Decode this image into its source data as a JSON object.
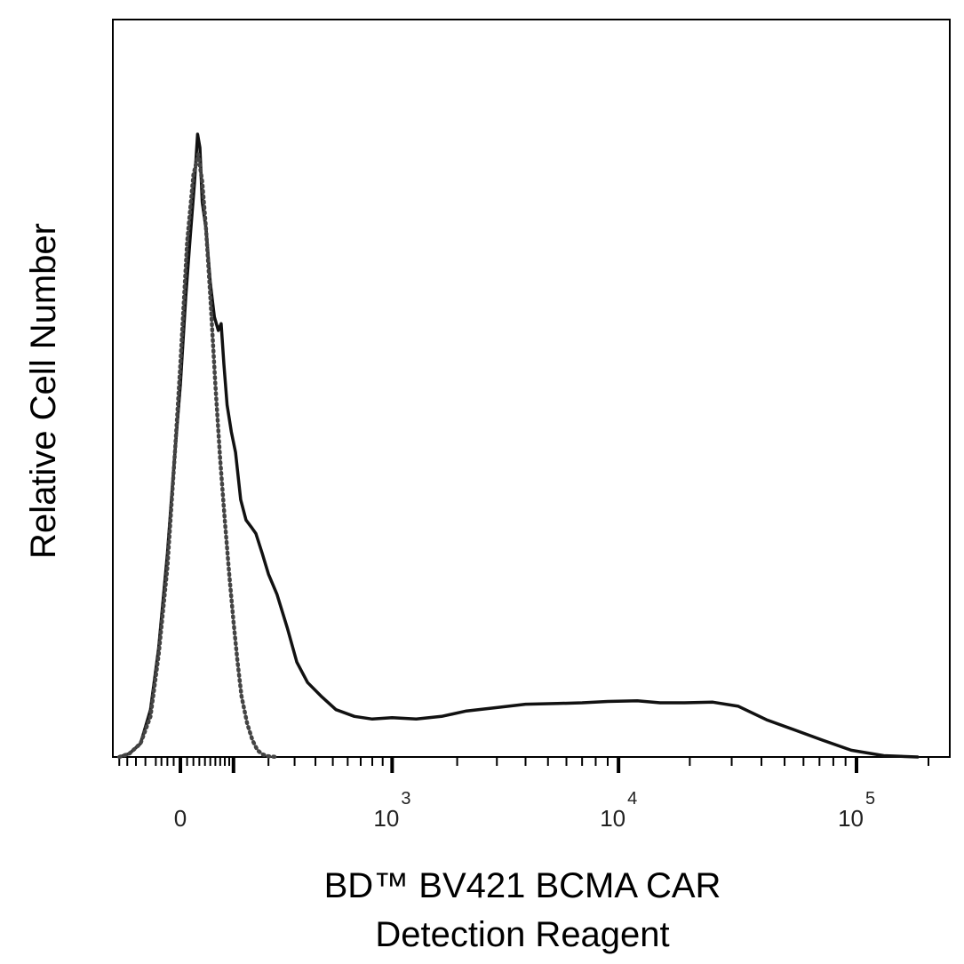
{
  "chart_data": {
    "type": "line",
    "title": "",
    "xlabel": [
      "BD™ BV421 BCMA CAR",
      "Detection Reagent"
    ],
    "ylabel": "Relative Cell Number",
    "x_scale": "biexponential",
    "xlim": [
      -130,
      200000
    ],
    "ylim": [
      0,
      100
    ],
    "x_ticks": [
      {
        "value": 0,
        "label": "0"
      },
      {
        "value": 1000,
        "base": "10",
        "exp": "3"
      },
      {
        "value": 10000,
        "base": "10",
        "exp": "4"
      },
      {
        "value": 100000,
        "base": "10",
        "exp": "5"
      }
    ],
    "grid": false,
    "legend": "none",
    "series": [
      {
        "style": "solid",
        "color": "#111111",
        "x": [
          -120,
          -95,
          -70,
          -50,
          -35,
          -20,
          -8,
          0,
          8,
          15,
          22,
          27,
          31,
          35,
          42,
          50,
          58,
          66,
          72,
          78,
          85,
          95,
          105,
          118,
          132,
          146,
          160,
          180,
          200,
          230,
          270,
          310,
          360,
          430,
          520,
          650,
          800,
          1000,
          1300,
          1700,
          2200,
          3000,
          4000,
          5500,
          7000,
          9000,
          12000,
          15000,
          19000,
          25000,
          32000,
          42000,
          55000,
          72000,
          95000,
          130000,
          180000
        ],
        "y": [
          0,
          0.5,
          2,
          7,
          16,
          30,
          45,
          55,
          68,
          77,
          85,
          92,
          90,
          82,
          78,
          70,
          65,
          63,
          64,
          58,
          52,
          48,
          45,
          38,
          35,
          34,
          33,
          30,
          27,
          24,
          19,
          14,
          11,
          9,
          7,
          6,
          5.6,
          5.8,
          5.6,
          6,
          6.8,
          7.3,
          7.8,
          7.9,
          8,
          8.2,
          8.3,
          8,
          8,
          8.1,
          7.5,
          5.5,
          4,
          2.5,
          1,
          0.2,
          0
        ]
      },
      {
        "style": "dotted",
        "color": "#444444",
        "x": [
          -120,
          -95,
          -70,
          -50,
          -35,
          -20,
          -8,
          0,
          10,
          20,
          28,
          35,
          42,
          50,
          60,
          70,
          80,
          90,
          100,
          110,
          120,
          135,
          150,
          165,
          180,
          200,
          230
        ],
        "y": [
          0,
          0.5,
          2,
          6,
          15,
          28,
          45,
          58,
          76,
          86,
          89,
          85,
          78,
          68,
          55,
          44,
          35,
          27,
          20,
          14,
          9,
          5,
          2.5,
          1,
          0.4,
          0.1,
          0
        ]
      }
    ]
  }
}
